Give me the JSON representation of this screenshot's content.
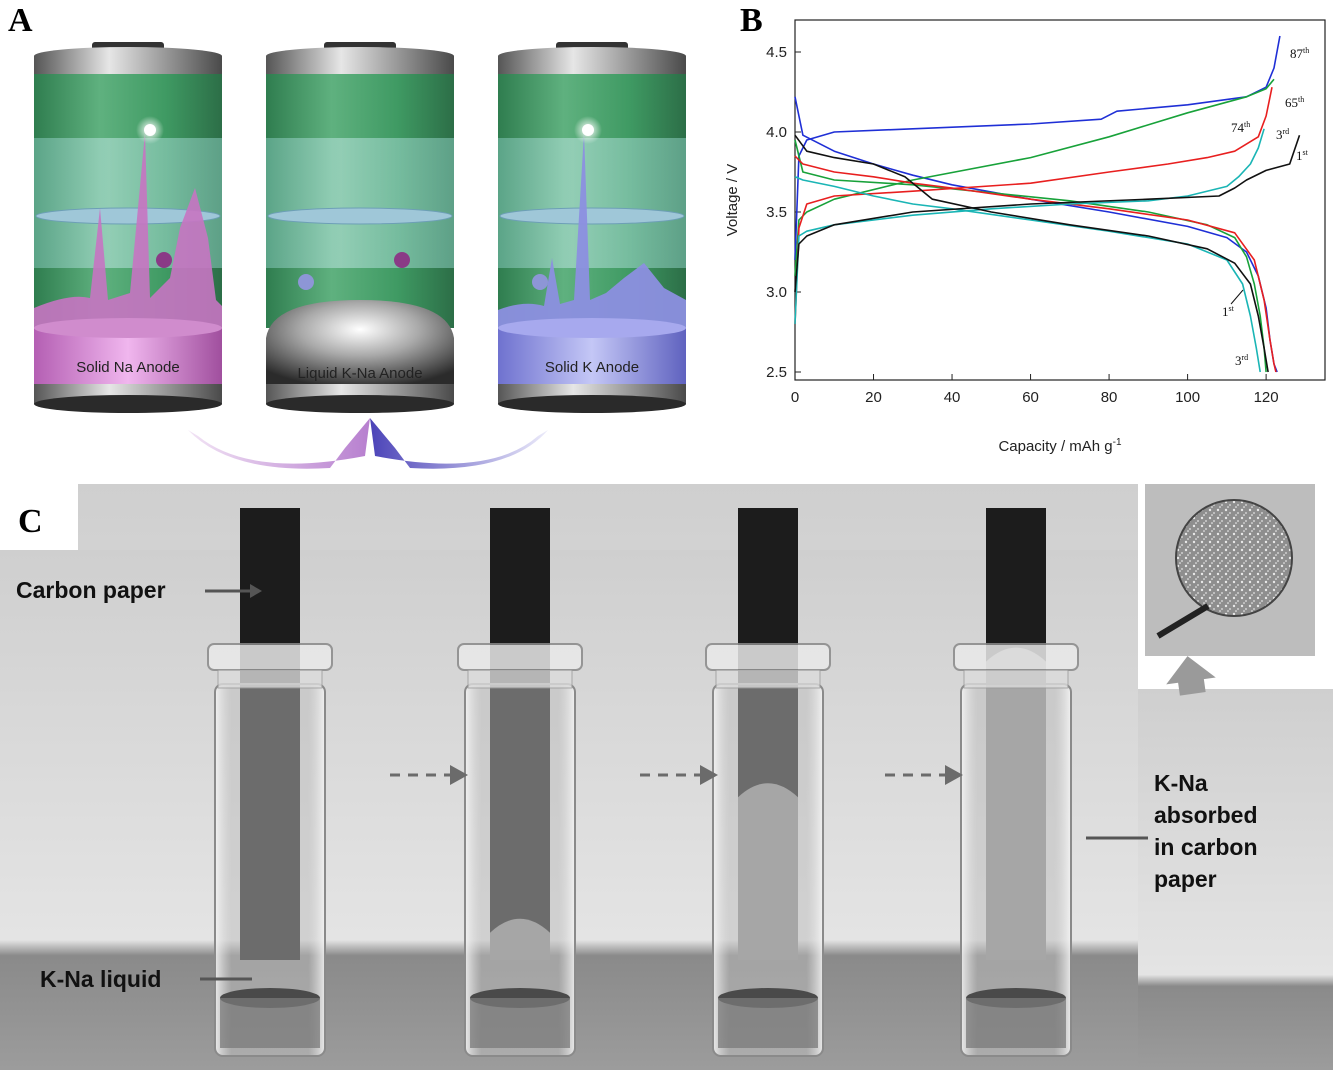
{
  "figure": {
    "panel_labels": {
      "a": "A",
      "b": "B",
      "c": "C"
    },
    "panel_a": {
      "cells": [
        {
          "label": "Solid Na Anode"
        },
        {
          "label": "Liquid K-Na Anode"
        },
        {
          "label": "Solid K Anode"
        }
      ],
      "colors": {
        "green": "#3f9a63",
        "na_spikes": "#c774c2",
        "k_spikes": "#8c8fe0",
        "arrow_left": "#c9a0d8",
        "arrow_right": "#6f66c8"
      }
    },
    "panel_c": {
      "annotations": {
        "carbon_paper": "Carbon paper",
        "liquid": "K-Na liquid",
        "absorbed_line1": "K-Na",
        "absorbed_line2": "absorbed",
        "absorbed_line3": "in carbon",
        "absorbed_line4": "paper"
      },
      "stages": [
        {
          "absorbed_fraction": 0.0
        },
        {
          "absorbed_fraction": 0.1
        },
        {
          "absorbed_fraction": 0.4
        },
        {
          "absorbed_fraction": 0.7
        }
      ]
    }
  },
  "chart_data": {
    "type": "line",
    "xlabel": "Capacity / mAh g",
    "xlabel_sup": "-1",
    "ylabel": "Voltage / V",
    "xlim": [
      0,
      135
    ],
    "ylim": [
      2.45,
      4.7
    ],
    "xticks": [
      "0",
      "20",
      "40",
      "60",
      "80",
      "100",
      "120"
    ],
    "yticks": [
      "2.5",
      "3.0",
      "3.5",
      "4.0",
      "4.5"
    ],
    "cycle_labels": [
      {
        "num": "87",
        "sup": "th"
      },
      {
        "num": "65",
        "sup": "th"
      },
      {
        "num": "74",
        "sup": "th"
      },
      {
        "num": "3",
        "sup": "rd"
      },
      {
        "num": "1",
        "sup": "st"
      },
      {
        "num": "1",
        "sup": "st"
      },
      {
        "num": "3",
        "sup": "rd"
      }
    ],
    "series": [
      {
        "color": "#1f2fd6",
        "charge": {
          "x": [
            0,
            1,
            3,
            10,
            30,
            60,
            78,
            82,
            100,
            115,
            120,
            122,
            123.5
          ],
          "y": [
            3.2,
            3.85,
            3.95,
            4.0,
            4.02,
            4.05,
            4.08,
            4.13,
            4.17,
            4.22,
            4.28,
            4.4,
            4.6
          ]
        },
        "discharge": {
          "x": [
            0,
            2,
            10,
            20,
            30,
            40,
            60,
            80,
            100,
            110,
            115,
            118,
            120,
            121,
            122,
            122.8
          ],
          "y": [
            4.22,
            3.98,
            3.88,
            3.8,
            3.73,
            3.67,
            3.58,
            3.5,
            3.41,
            3.34,
            3.25,
            3.1,
            2.9,
            2.7,
            2.55,
            2.5
          ]
        }
      },
      {
        "color": "#18a23a",
        "charge": {
          "x": [
            0,
            1,
            3,
            10,
            30,
            60,
            80,
            100,
            115,
            120,
            122
          ],
          "y": [
            3.1,
            3.45,
            3.5,
            3.58,
            3.7,
            3.84,
            3.97,
            4.12,
            4.22,
            4.27,
            4.33
          ]
        },
        "discharge": {
          "x": [
            0,
            2,
            10,
            30,
            50,
            70,
            90,
            105,
            112,
            115,
            117,
            118.5,
            119.5,
            120
          ],
          "y": [
            3.95,
            3.75,
            3.7,
            3.67,
            3.62,
            3.57,
            3.5,
            3.42,
            3.34,
            3.22,
            3.05,
            2.85,
            2.65,
            2.5
          ]
        }
      },
      {
        "color": "#e81f1f",
        "charge": {
          "x": [
            0,
            1,
            3,
            10,
            30,
            60,
            80,
            95,
            105,
            112,
            118,
            120,
            121.5
          ],
          "y": [
            2.8,
            3.4,
            3.55,
            3.6,
            3.63,
            3.68,
            3.75,
            3.8,
            3.84,
            3.88,
            3.97,
            4.1,
            4.28
          ]
        },
        "discharge": {
          "x": [
            0,
            2,
            10,
            20,
            30,
            40,
            60,
            80,
            100,
            112,
            117,
            119.5,
            121,
            122,
            122.5
          ],
          "y": [
            3.85,
            3.8,
            3.75,
            3.72,
            3.68,
            3.65,
            3.58,
            3.52,
            3.45,
            3.37,
            3.2,
            2.95,
            2.7,
            2.55,
            2.5
          ]
        }
      },
      {
        "color": "#1ab5b5",
        "charge": {
          "x": [
            0,
            1,
            3,
            10,
            30,
            50,
            70,
            90,
            100,
            110,
            113,
            116,
            118,
            119.5
          ],
          "y": [
            2.8,
            3.35,
            3.38,
            3.42,
            3.48,
            3.52,
            3.55,
            3.57,
            3.6,
            3.66,
            3.72,
            3.8,
            3.9,
            4.02
          ]
        },
        "discharge": {
          "x": [
            0,
            2,
            10,
            20,
            30,
            40,
            60,
            80,
            100,
            110,
            114,
            116,
            117.5,
            118.5
          ],
          "y": [
            3.72,
            3.7,
            3.66,
            3.6,
            3.55,
            3.52,
            3.45,
            3.38,
            3.3,
            3.2,
            3.05,
            2.85,
            2.65,
            2.5
          ]
        }
      },
      {
        "color": "#111111",
        "charge": {
          "x": [
            0,
            1,
            3,
            10,
            30,
            60,
            90,
            108,
            112,
            115,
            120,
            126,
            128.5
          ],
          "y": [
            3.0,
            3.3,
            3.35,
            3.42,
            3.5,
            3.55,
            3.58,
            3.6,
            3.65,
            3.7,
            3.76,
            3.8,
            3.98
          ]
        },
        "discharge": {
          "x": [
            0,
            3,
            10,
            20,
            28,
            35,
            50,
            70,
            90,
            105,
            112,
            116,
            118,
            119.5,
            120.5
          ],
          "y": [
            3.98,
            3.88,
            3.84,
            3.8,
            3.72,
            3.58,
            3.5,
            3.42,
            3.35,
            3.27,
            3.18,
            3.05,
            2.85,
            2.65,
            2.5
          ]
        }
      }
    ]
  }
}
